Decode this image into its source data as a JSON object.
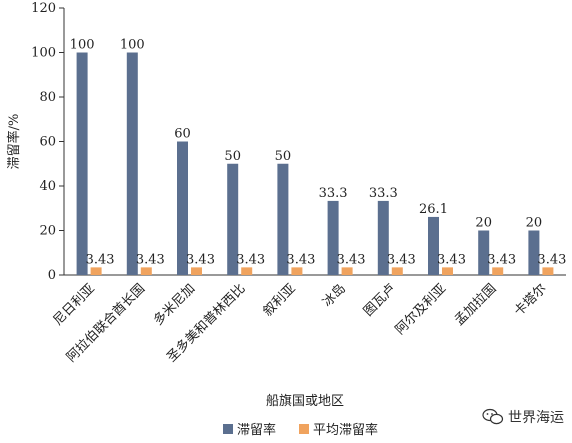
{
  "chart_data": {
    "type": "bar",
    "categories": [
      "尼日利亚",
      "阿拉伯联合酋长国",
      "多米尼加",
      "圣多美和普林西比",
      "叙利亚",
      "冰岛",
      "图瓦卢",
      "阿尔及利亚",
      "孟加拉国",
      "卡塔尔"
    ],
    "series": [
      {
        "name": "滞留率",
        "values": [
          100,
          100,
          60,
          50,
          50,
          33.3,
          33.3,
          26.1,
          20,
          20
        ],
        "color": "#5b6f8f",
        "labels": [
          "100",
          "100",
          "60",
          "50",
          "50",
          "33.3",
          "33.3",
          "26.1",
          "20",
          "20"
        ]
      },
      {
        "name": "平均滞留率",
        "values": [
          3.43,
          3.43,
          3.43,
          3.43,
          3.43,
          3.43,
          3.43,
          3.43,
          3.43,
          3.43
        ],
        "color": "#f0a35e",
        "labels": [
          "3.43",
          "3.43",
          "3.43",
          "3.43",
          "3.43",
          "3.43",
          "3.43",
          "3.43",
          "3.43",
          "3.43"
        ]
      }
    ],
    "xlabel": "船旗国或地区",
    "ylabel": "滞留率/%",
    "ylim": [
      0,
      120
    ],
    "yticks": [
      0,
      20,
      40,
      60,
      80,
      100,
      120
    ],
    "legend_position": "bottom-center",
    "grid": false
  },
  "watermark": {
    "text": "世界海运",
    "icon": "wechat-icon"
  }
}
